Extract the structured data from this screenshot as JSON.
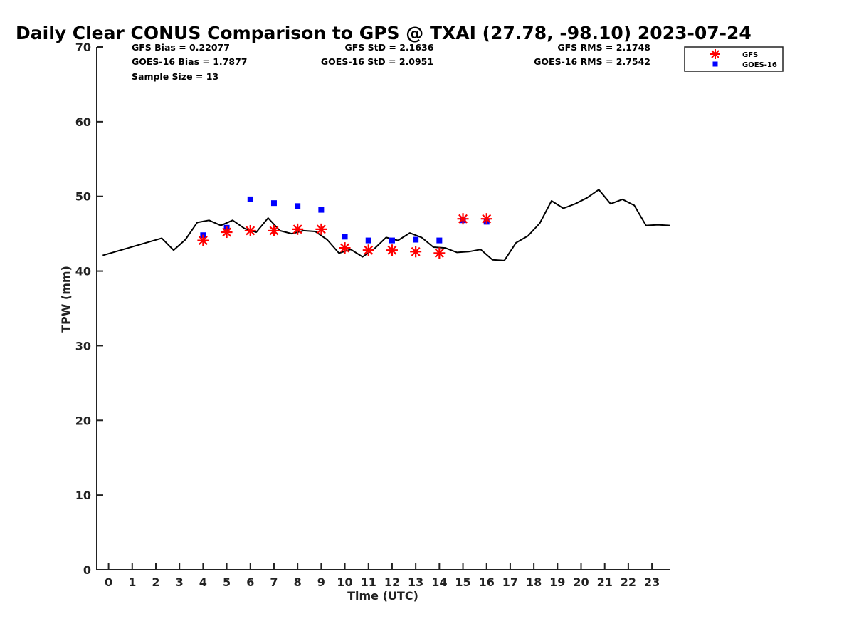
{
  "chart_data": {
    "type": "scatter",
    "title": "Daily Clear CONUS Comparison to GPS @ TXAI (27.78, -98.10) 2023-07-24",
    "xlabel": "Time (UTC)",
    "ylabel": "TPW (mm)",
    "xlim": [
      -0.5,
      23.75
    ],
    "ylim": [
      0,
      70
    ],
    "x_ticks": [
      0,
      1,
      2,
      3,
      4,
      5,
      6,
      7,
      8,
      9,
      10,
      11,
      12,
      13,
      14,
      15,
      16,
      17,
      18,
      19,
      20,
      21,
      22,
      23
    ],
    "y_ticks": [
      0,
      10,
      20,
      30,
      40,
      50,
      60,
      70
    ],
    "stats": {
      "gfs_bias": "GFS Bias = 0.22077",
      "goes_bias": "GOES-16 Bias = 1.7877",
      "sample_size": "Sample Size = 13",
      "gfs_std": "GFS StD = 2.1636",
      "goes_std": "GOES-16 StD = 2.0951",
      "gfs_rms": "GFS RMS = 2.1748",
      "goes_rms": "GOES-16 RMS = 2.7542"
    },
    "legend": {
      "position": "top-right",
      "entries": [
        "GFS",
        "GOES-16"
      ]
    },
    "series": [
      {
        "name": "GPS",
        "style": "line",
        "color": "#000000",
        "x": [
          -0.25,
          2.25,
          2.75,
          3.25,
          3.75,
          4.25,
          4.75,
          5.25,
          5.75,
          6.25,
          6.75,
          7.25,
          7.75,
          8.25,
          8.75,
          9.25,
          9.75,
          10.25,
          10.75,
          11.25,
          11.75,
          12.25,
          12.75,
          13.25,
          13.75,
          14.25,
          14.75,
          15.25,
          15.75,
          16.25,
          16.75,
          17.25,
          17.75,
          18.25,
          18.75,
          19.25,
          19.75,
          20.25,
          20.75,
          21.25,
          21.75,
          22.25,
          22.75,
          23.25,
          23.75
        ],
        "y": [
          42.1,
          44.4,
          42.8,
          44.2,
          46.5,
          46.8,
          46.1,
          46.8,
          45.7,
          45.2,
          47.1,
          45.4,
          45.0,
          45.4,
          45.3,
          44.2,
          42.4,
          42.9,
          41.9,
          43.0,
          44.5,
          44.1,
          45.1,
          44.5,
          43.2,
          43.1,
          42.5,
          42.6,
          42.9,
          41.5,
          41.4,
          43.8,
          44.7,
          46.4,
          49.4,
          48.4,
          49.0,
          49.8,
          50.9,
          49.0,
          49.6,
          48.8,
          46.1,
          46.2,
          46.1
        ]
      },
      {
        "name": "GFS",
        "style": "asterisk",
        "color": "#ff0000",
        "x": [
          4,
          5,
          6,
          7,
          8,
          9,
          10,
          11,
          12,
          13,
          14,
          15,
          16
        ],
        "y": [
          44.1,
          45.2,
          45.4,
          45.4,
          45.6,
          45.6,
          43.1,
          42.8,
          42.8,
          42.6,
          42.4,
          47.0,
          47.0
        ]
      },
      {
        "name": "GOES-16",
        "style": "square",
        "color": "#0000ff",
        "x": [
          4,
          5,
          6,
          7,
          8,
          9,
          10,
          11,
          12,
          13,
          14,
          15,
          16
        ],
        "y": [
          44.8,
          45.8,
          49.6,
          49.1,
          48.7,
          48.2,
          44.6,
          44.1,
          44.1,
          44.2,
          44.1,
          46.8,
          46.6
        ]
      }
    ]
  }
}
